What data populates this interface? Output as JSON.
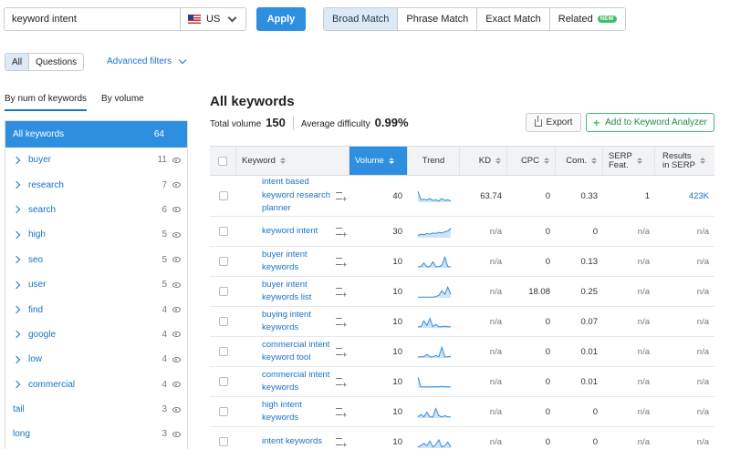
{
  "search": {
    "query": "keyword intent",
    "country": "US",
    "apply_label": "Apply"
  },
  "match_tabs": [
    {
      "label": "Broad Match",
      "active": true
    },
    {
      "label": "Phrase Match",
      "active": false
    },
    {
      "label": "Exact Match",
      "active": false
    },
    {
      "label": "Related",
      "active": false,
      "badge": "NEW"
    }
  ],
  "filters": {
    "all_label": "All",
    "questions_label": "Questions",
    "advanced_label": "Advanced filters"
  },
  "sidebar": {
    "tabs": [
      {
        "label": "By num of keywords",
        "active": true
      },
      {
        "label": "By volume",
        "active": false
      }
    ],
    "items": [
      {
        "label": "All keywords",
        "count": "64",
        "active": true,
        "expandable": false,
        "eye": false
      },
      {
        "label": "buyer",
        "count": "11",
        "expandable": true,
        "eye": true
      },
      {
        "label": "research",
        "count": "7",
        "expandable": true,
        "eye": true
      },
      {
        "label": "search",
        "count": "6",
        "expandable": true,
        "eye": true
      },
      {
        "label": "high",
        "count": "5",
        "expandable": true,
        "eye": true
      },
      {
        "label": "seo",
        "count": "5",
        "expandable": true,
        "eye": true
      },
      {
        "label": "user",
        "count": "5",
        "expandable": true,
        "eye": true
      },
      {
        "label": "find",
        "count": "4",
        "expandable": true,
        "eye": true
      },
      {
        "label": "google",
        "count": "4",
        "expandable": true,
        "eye": true
      },
      {
        "label": "low",
        "count": "4",
        "expandable": true,
        "eye": true
      },
      {
        "label": "commercial",
        "count": "4",
        "expandable": true,
        "eye": true
      },
      {
        "label": "tail",
        "count": "3",
        "expandable": false,
        "eye": true
      },
      {
        "label": "long",
        "count": "3",
        "expandable": false,
        "eye": true
      }
    ]
  },
  "main": {
    "title": "All keywords",
    "total_volume_label": "Total volume",
    "total_volume": "150",
    "avg_difficulty_label": "Average difficulty",
    "avg_difficulty": "0.99%",
    "export_label": "Export",
    "analyzer_label": "Add to Keyword Analyzer"
  },
  "table": {
    "headers": {
      "keyword": "Keyword",
      "volume": "Volume",
      "trend": "Trend",
      "kd": "KD",
      "cpc": "CPC",
      "com": "Com.",
      "serp_line1": "SERP",
      "serp_line2": "Feat.",
      "results_line1": "Results",
      "results_line2": "in SERP"
    },
    "rows": [
      {
        "keyword": [
          "intent based",
          "keyword research",
          "planner"
        ],
        "volume": "40",
        "kd": "63.74",
        "cpc": "0",
        "com": "0.33",
        "serp": "1",
        "results": "423K",
        "trend": [
          0.9,
          0.2,
          0.25,
          0.2,
          0.3,
          0.15,
          0.2,
          0.1,
          0.3,
          0.15,
          0.2,
          0.1
        ]
      },
      {
        "keyword": [
          "keyword intent"
        ],
        "volume": "30",
        "kd": "n/a",
        "cpc": "0",
        "com": "0",
        "serp": "n/a",
        "results": "n/a",
        "trend": [
          0.2,
          0.3,
          0.25,
          0.35,
          0.3,
          0.4,
          0.35,
          0.45,
          0.4,
          0.5,
          0.55,
          0.8
        ]
      },
      {
        "keyword": [
          "buyer intent",
          "keywords"
        ],
        "volume": "10",
        "kd": "n/a",
        "cpc": "0",
        "com": "0.13",
        "serp": "n/a",
        "results": "n/a",
        "trend": [
          0.1,
          0.1,
          0.4,
          0.1,
          0.1,
          0.5,
          0.1,
          0.1,
          0.2,
          0.9,
          0.1,
          0.1
        ]
      },
      {
        "keyword": [
          "buyer intent",
          "keywords list"
        ],
        "volume": "10",
        "kd": "n/a",
        "cpc": "18.08",
        "com": "0.25",
        "serp": "n/a",
        "results": "n/a",
        "trend": [
          0.05,
          0.05,
          0.05,
          0.05,
          0.05,
          0.05,
          0.1,
          0.2,
          0.6,
          0.3,
          0.9,
          0.3
        ]
      },
      {
        "keyword": [
          "buying intent",
          "keywords"
        ],
        "volume": "10",
        "kd": "n/a",
        "cpc": "0",
        "com": "0.07",
        "serp": "n/a",
        "results": "n/a",
        "trend": [
          0.1,
          0.1,
          0.6,
          0.2,
          0.8,
          0.1,
          0.3,
          0.1,
          0.1,
          0.15,
          0.1,
          0.1
        ]
      },
      {
        "keyword": [
          "commercial intent",
          "keyword tool"
        ],
        "volume": "10",
        "kd": "n/a",
        "cpc": "0",
        "com": "0.01",
        "serp": "n/a",
        "results": "n/a",
        "trend": [
          0.1,
          0.1,
          0.1,
          0.3,
          0.1,
          0.1,
          0.2,
          0.1,
          0.9,
          0.1,
          0.1,
          0.15
        ]
      },
      {
        "keyword": [
          "commercial intent",
          "keywords"
        ],
        "volume": "10",
        "kd": "n/a",
        "cpc": "0",
        "com": "0.01",
        "serp": "n/a",
        "results": "n/a",
        "trend": [
          0.9,
          0.1,
          0.1,
          0.1,
          0.1,
          0.1,
          0.1,
          0.1,
          0.15,
          0.1,
          0.1,
          0.1
        ]
      },
      {
        "keyword": [
          "high intent",
          "keywords"
        ],
        "volume": "10",
        "kd": "n/a",
        "cpc": "0",
        "com": "0",
        "serp": "n/a",
        "results": "n/a",
        "trend": [
          0.1,
          0.3,
          0.1,
          0.5,
          0.1,
          0.1,
          0.8,
          0.2,
          0.1,
          0.2,
          0.1,
          0.1
        ]
      },
      {
        "keyword": [
          "intent keywords"
        ],
        "volume": "10",
        "kd": "n/a",
        "cpc": "0",
        "com": "0",
        "serp": "n/a",
        "results": "n/a",
        "trend": [
          0.1,
          0.2,
          0.4,
          0.2,
          0.6,
          0.1,
          0.3,
          0.7,
          0.1,
          0.2,
          0.5,
          0.1
        ]
      }
    ]
  },
  "colors": {
    "accent": "#2e8fe0",
    "link": "#1a73c8",
    "green": "#3fbf6c"
  }
}
